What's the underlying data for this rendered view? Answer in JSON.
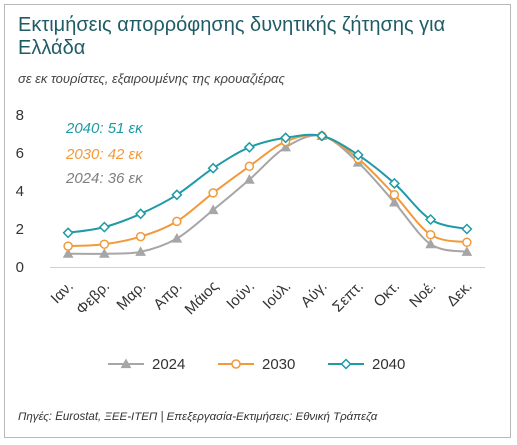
{
  "title": "Εκτιμήσεις απορρόφησης δυνητικής ζήτησης για Ελλάδα",
  "subtitle": "σε εκ τουρίστες, εξαιρουμένης της κρουαζιέρας",
  "source": "Πηγές: Eurostat, ΞΕΕ-ΙΤΕΠ | Επεξεργασία-Εκτιμήσεις: Εθνική Τράπεζα",
  "chart_data": {
    "type": "line",
    "categories": [
      "Ιαν.",
      "Φεβρ.",
      "Μαρ.",
      "Απρ.",
      "Μάιος",
      "Ιούν.",
      "Ιούλ.",
      "Αύγ.",
      "Σεπτ.",
      "Οκτ.",
      "Νοέ.",
      "Δεκ."
    ],
    "ylim": [
      0,
      8
    ],
    "yticks": [
      0,
      2,
      4,
      6,
      8
    ],
    "grid": false,
    "legend_position": "bottom",
    "series": [
      {
        "name": "2024",
        "color": "#a6a6a6",
        "marker": "triangle",
        "values": [
          0.7,
          0.7,
          0.8,
          1.5,
          3.0,
          4.6,
          6.3,
          6.9,
          5.5,
          3.4,
          1.2,
          0.8
        ]
      },
      {
        "name": "2030",
        "color": "#f29a3a",
        "marker": "circle",
        "values": [
          1.1,
          1.2,
          1.6,
          2.4,
          3.9,
          5.3,
          6.6,
          6.9,
          5.7,
          3.8,
          1.7,
          1.3
        ]
      },
      {
        "name": "2040",
        "color": "#1f9aa6",
        "marker": "diamond",
        "values": [
          1.8,
          2.1,
          2.8,
          3.8,
          5.2,
          6.3,
          6.8,
          6.9,
          5.9,
          4.4,
          2.5,
          2.0
        ]
      }
    ],
    "annotations": [
      {
        "text": "2040: 51 εκ",
        "color": "#1f9aa6"
      },
      {
        "text": "2030: 42 εκ",
        "color": "#f29a3a"
      },
      {
        "text": "2024: 36 εκ",
        "color": "#7f7f7f"
      }
    ]
  }
}
